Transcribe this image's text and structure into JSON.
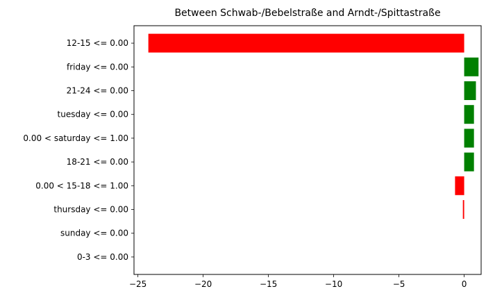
{
  "chart_data": {
    "type": "bar",
    "orientation": "horizontal",
    "title": "Between Schwab-/Bebelstraße and Arndt-/Spittastraße",
    "xlabel": "",
    "ylabel": "",
    "xlim": [
      -25.3,
      1.3
    ],
    "xticks": [
      -25,
      -20,
      -15,
      -10,
      -5,
      0
    ],
    "xtick_labels": [
      "−25",
      "−20",
      "−15",
      "−10",
      "−5",
      "0"
    ],
    "categories": [
      "12-15 <= 0.00",
      "friday <= 0.00",
      "21-24 <= 0.00",
      "tuesday <= 0.00",
      "0.00 < saturday <= 1.00",
      "18-21 <= 0.00",
      "0.00 < 15-18 <= 1.00",
      "thursday <= 0.00",
      "sunday <= 0.00",
      "0-3 <= 0.00"
    ],
    "values": [
      -24.2,
      1.1,
      0.9,
      0.75,
      0.75,
      0.75,
      -0.7,
      -0.1,
      0.0,
      0.0
    ],
    "positive_color": "#008000",
    "negative_color": "#ff0000",
    "grid": false,
    "legend": "none"
  }
}
